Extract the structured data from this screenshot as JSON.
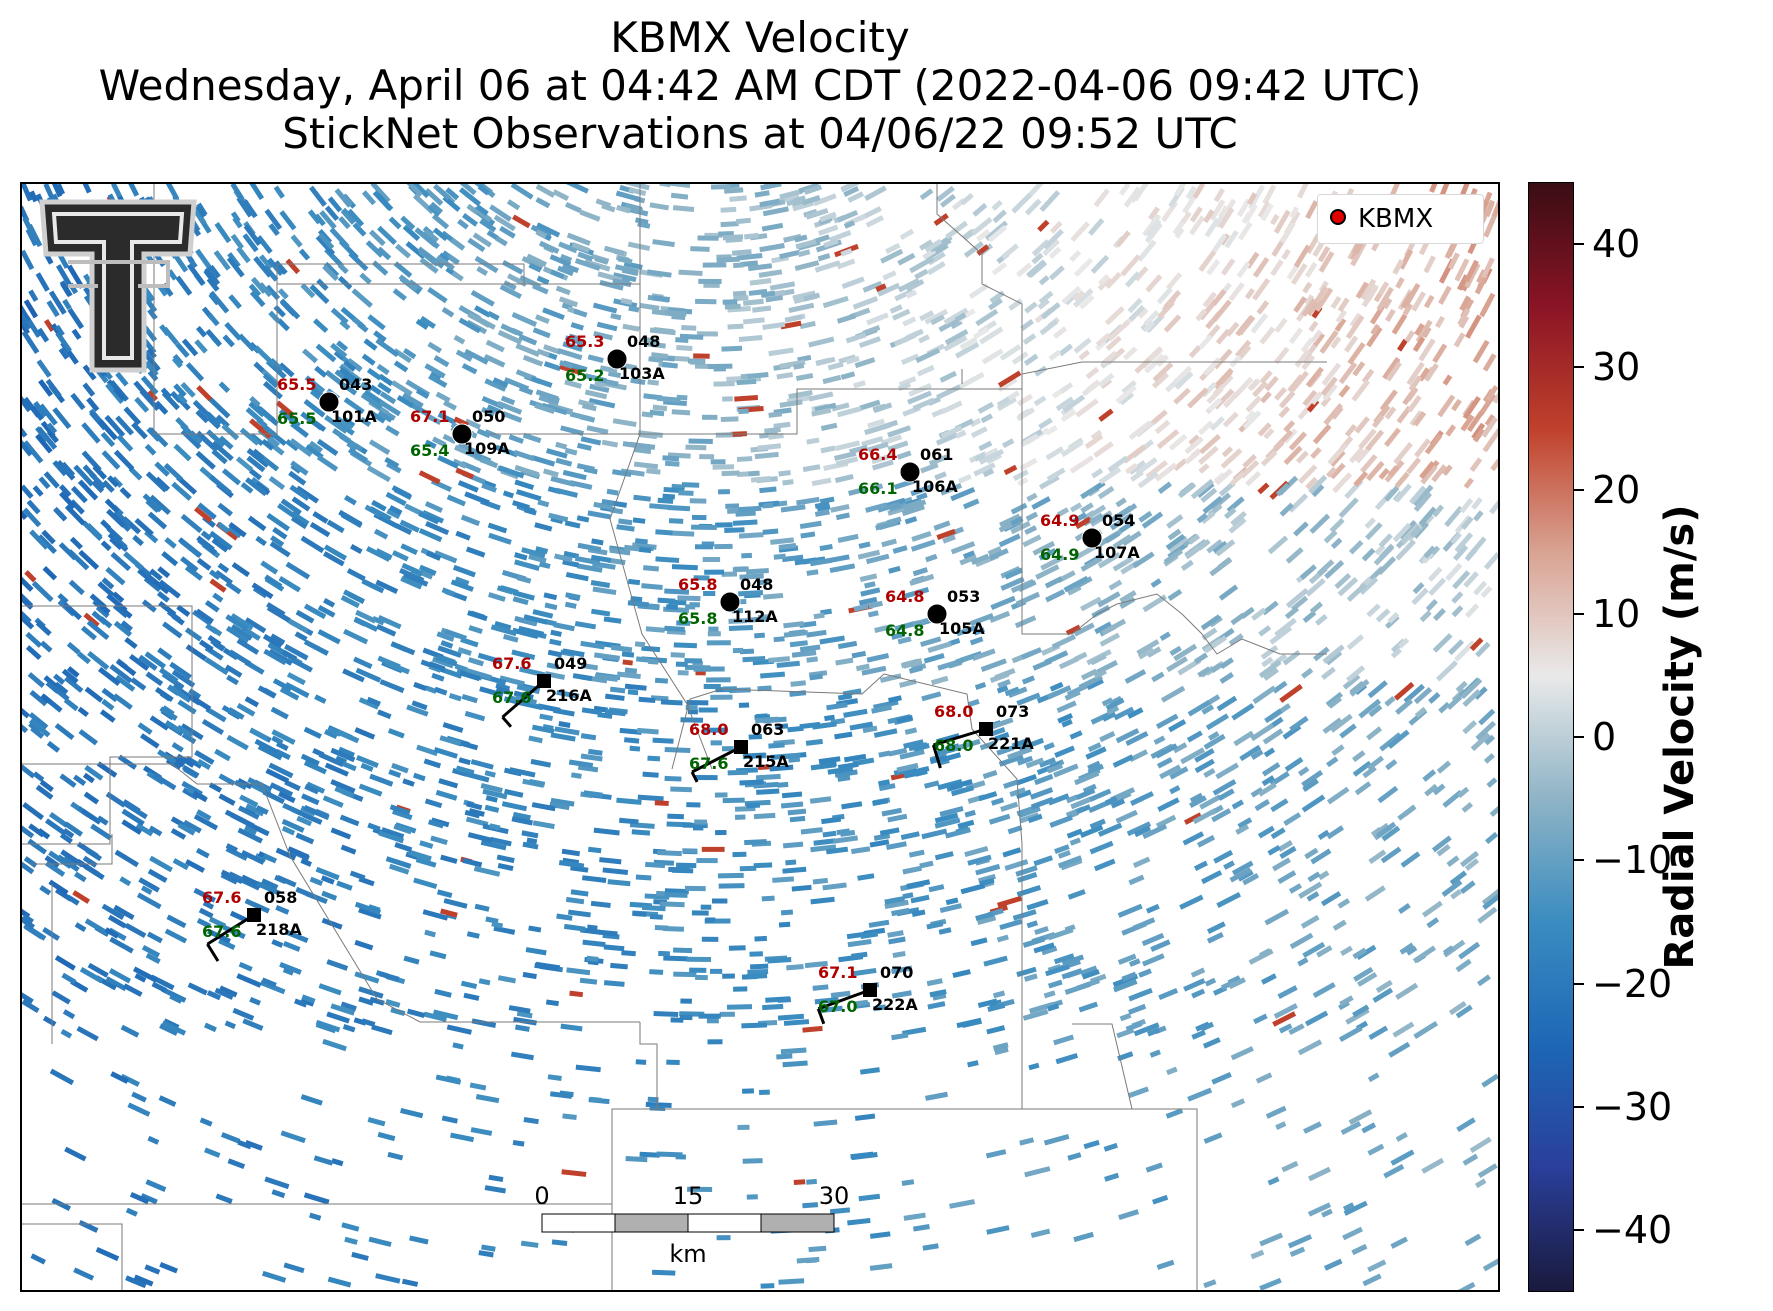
{
  "title": {
    "line1": "KBMX Velocity",
    "line2": "Wednesday, April 06 at 04:42 AM CDT (2022-04-06 09:42 UTC)",
    "line3": "StickNet Observations at 04/06/22 09:52 UTC"
  },
  "legend": {
    "label": "KBMX",
    "marker_color": "#e00000"
  },
  "colorbar": {
    "label": "Radial Velocity (m/s)",
    "min": -45,
    "max": 45,
    "ticks": [
      "40",
      "30",
      "20",
      "10",
      "0",
      "−10",
      "−20",
      "−30",
      "−40"
    ],
    "tick_values": [
      40,
      30,
      20,
      10,
      0,
      -10,
      -20,
      -30,
      -40
    ],
    "colors": [
      "#1a1a3d",
      "#2a3f9a",
      "#1e67b6",
      "#3a8cc0",
      "#8fb4c6",
      "#e9e9e9",
      "#d9a392",
      "#c0412b",
      "#8a1425",
      "#3a0d14"
    ]
  },
  "scale_bar": {
    "labels": [
      "0",
      "15",
      "30"
    ],
    "unit": "km"
  },
  "logo": {
    "name": "Texas Tech Double T",
    "text": "TT"
  },
  "stations": [
    {
      "id": "101A",
      "top": "65.5",
      "bottom": "65.5",
      "dir": "043",
      "type": "circle"
    },
    {
      "id": "103A",
      "top": "65.3",
      "bottom": "65.2",
      "dir": "048",
      "type": "circle"
    },
    {
      "id": "109A",
      "top": "67.1",
      "bottom": "65.4",
      "dir": "050",
      "type": "circle"
    },
    {
      "id": "106A",
      "top": "66.4",
      "bottom": "66.1",
      "dir": "061",
      "type": "circle"
    },
    {
      "id": "107A",
      "top": "64.9",
      "bottom": "64.9",
      "dir": "054",
      "type": "circle"
    },
    {
      "id": "112A",
      "top": "65.8",
      "bottom": "65.8",
      "dir": "048",
      "type": "circle"
    },
    {
      "id": "105A",
      "top": "64.8",
      "bottom": "64.8",
      "dir": "053",
      "type": "circle"
    },
    {
      "id": "216A",
      "top": "67.6",
      "bottom": "67.6",
      "dir": "049",
      "type": "square"
    },
    {
      "id": "215A",
      "top": "68.0",
      "bottom": "67.6",
      "dir": "063",
      "type": "square"
    },
    {
      "id": "221A",
      "top": "68.0",
      "bottom": "68.0",
      "dir": "073",
      "type": "square"
    },
    {
      "id": "218A",
      "top": "67.6",
      "bottom": "67.6",
      "dir": "058",
      "type": "square"
    },
    {
      "id": "222A",
      "top": "67.1",
      "bottom": "67.0",
      "dir": "070",
      "type": "square"
    }
  ]
}
